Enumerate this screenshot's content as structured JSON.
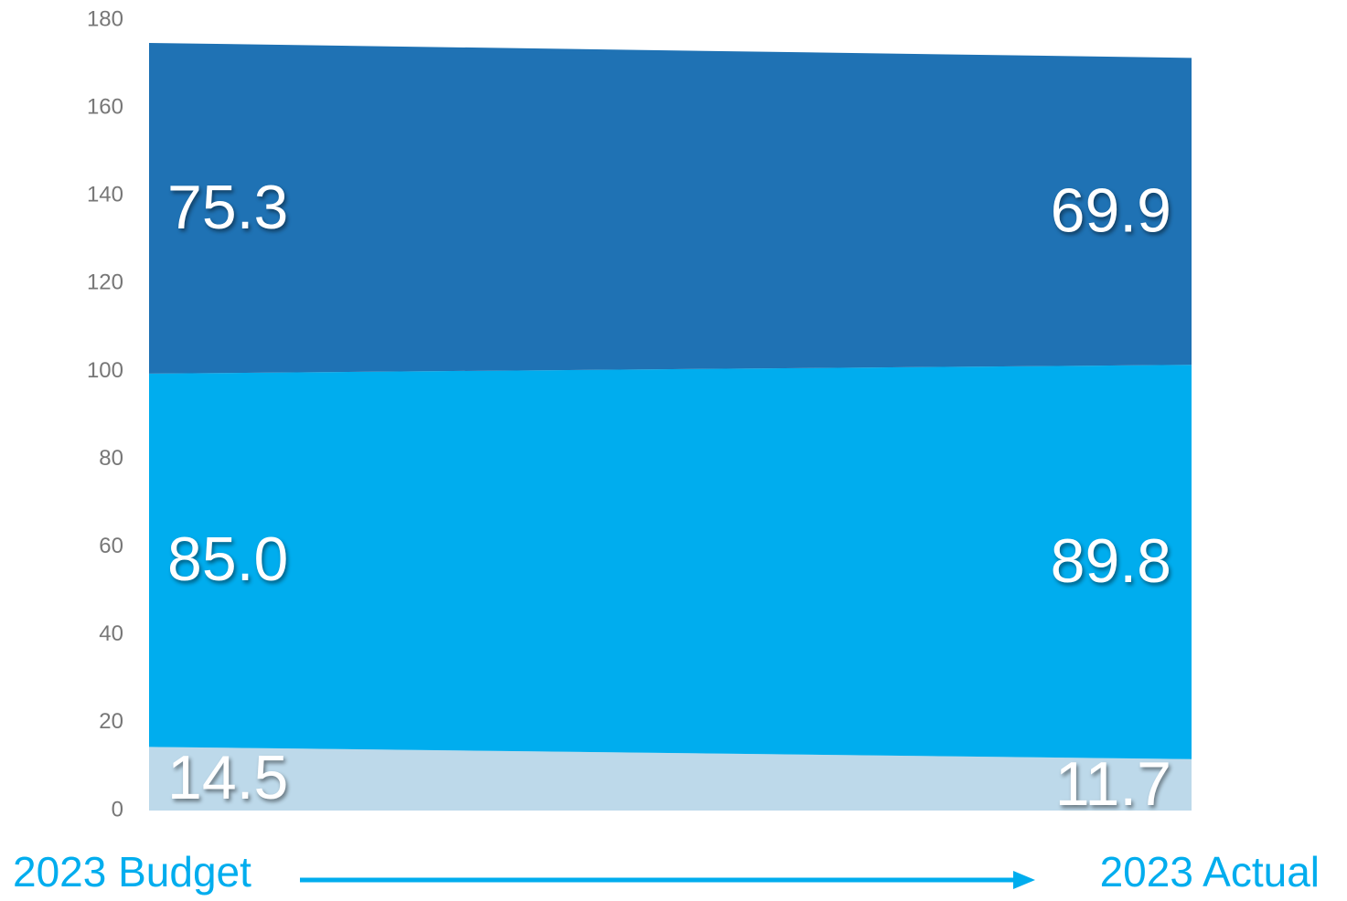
{
  "chart_data": {
    "type": "stacked_area",
    "categories": [
      "2023 Budget",
      "2023 Actual"
    ],
    "series": [
      {
        "color": "#bdd9ea",
        "values": [
          14.5,
          11.7
        ]
      },
      {
        "color": "#00adee",
        "values": [
          85.0,
          89.8
        ],
        "value_labels": [
          "85.0",
          "89.8"
        ]
      },
      {
        "color": "#1f72b4",
        "values": [
          75.3,
          69.9
        ]
      }
    ],
    "ylim": [
      0,
      180
    ],
    "yticks": [
      0,
      20,
      40,
      60,
      80,
      100,
      120,
      140,
      160,
      180
    ],
    "grid": false
  }
}
